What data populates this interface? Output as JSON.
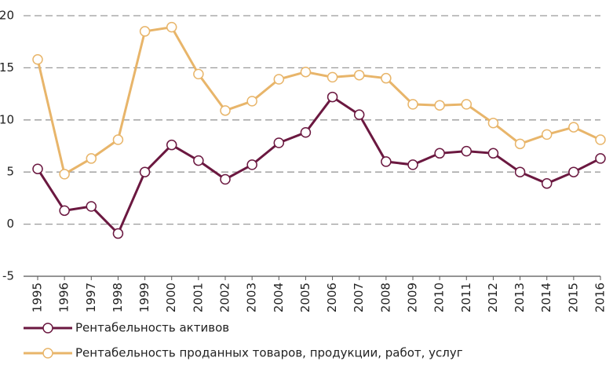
{
  "chart_data": {
    "type": "line",
    "categories": [
      "1995",
      "1996",
      "1997",
      "1998",
      "1999",
      "2000",
      "2001",
      "2002",
      "2003",
      "2004",
      "2005",
      "2006",
      "2007",
      "2008",
      "2009",
      "2010",
      "2011",
      "2012",
      "2013",
      "2014",
      "2015",
      "2016"
    ],
    "series": [
      {
        "name": "Рентабельность активов",
        "color": "#6b1840",
        "values": [
          5.3,
          1.3,
          1.7,
          -0.9,
          5.0,
          7.6,
          6.1,
          4.3,
          5.7,
          7.8,
          8.8,
          12.2,
          10.5,
          6.0,
          5.7,
          6.8,
          7.0,
          6.8,
          5.0,
          3.9,
          5.0,
          6.3
        ]
      },
      {
        "name": "Рентабельность проданных товаров, продукции, работ, услуг",
        "color": "#e8b56a",
        "values": [
          15.8,
          4.8,
          6.3,
          8.1,
          18.5,
          18.9,
          14.4,
          10.9,
          11.8,
          13.9,
          14.6,
          14.1,
          14.3,
          14.0,
          11.5,
          11.4,
          11.5,
          9.7,
          7.7,
          8.6,
          9.3,
          8.1
        ]
      }
    ],
    "ylim": [
      -5,
      20
    ],
    "yticks": [
      -5,
      0,
      5,
      10,
      15,
      20
    ],
    "grid": true,
    "legend": "bottom"
  }
}
